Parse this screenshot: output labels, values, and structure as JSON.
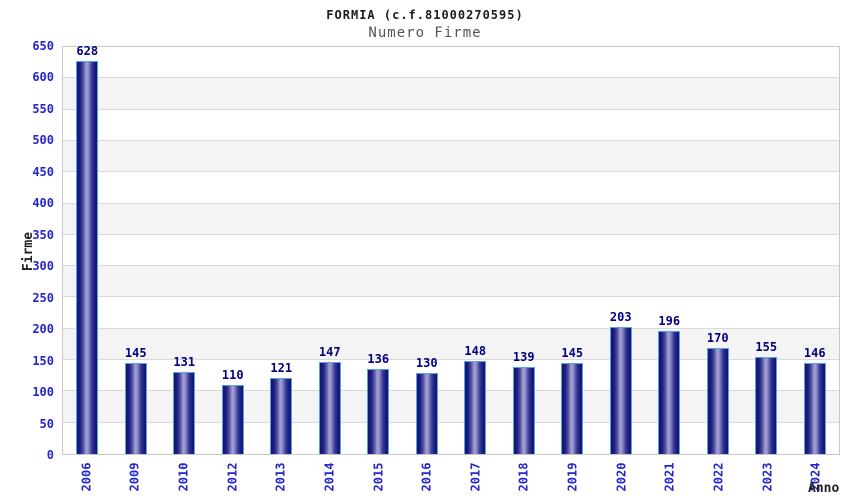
{
  "title": "FORMIA (c.f.81000270595)",
  "subtitle": "Numero Firme",
  "chart_data": {
    "type": "bar",
    "title": "FORMIA (c.f.81000270595)",
    "subtitle": "Numero Firme",
    "xlabel": "Anno",
    "ylabel": "Firme",
    "categories": [
      "2006",
      "2009",
      "2010",
      "2012",
      "2013",
      "2014",
      "2015",
      "2016",
      "2017",
      "2018",
      "2019",
      "2020",
      "2021",
      "2022",
      "2023",
      "2024"
    ],
    "values": [
      628,
      145,
      131,
      110,
      121,
      147,
      136,
      130,
      148,
      139,
      145,
      203,
      196,
      170,
      155,
      146
    ],
    "ylim": [
      0,
      650
    ],
    "ytick_step": 50,
    "yticks": [
      0,
      50,
      100,
      150,
      200,
      250,
      300,
      350,
      400,
      450,
      500,
      550,
      600,
      650
    ],
    "grid": "horizontal",
    "banded_rows": true,
    "legend_position": "none",
    "colors": {
      "bar_dark": "#13136e",
      "bar_light": "#a2a2d6",
      "bar_border": "#58a2e8",
      "value_label": "#000080",
      "tick_label": "#2525cc",
      "axis_title": "#222222",
      "band": "#f4f4f4",
      "gridline": "#d9d9d9",
      "plot_border": "#c9c9c9",
      "title_text": "#1c1c1c",
      "subtitle_text": "#555555"
    }
  }
}
